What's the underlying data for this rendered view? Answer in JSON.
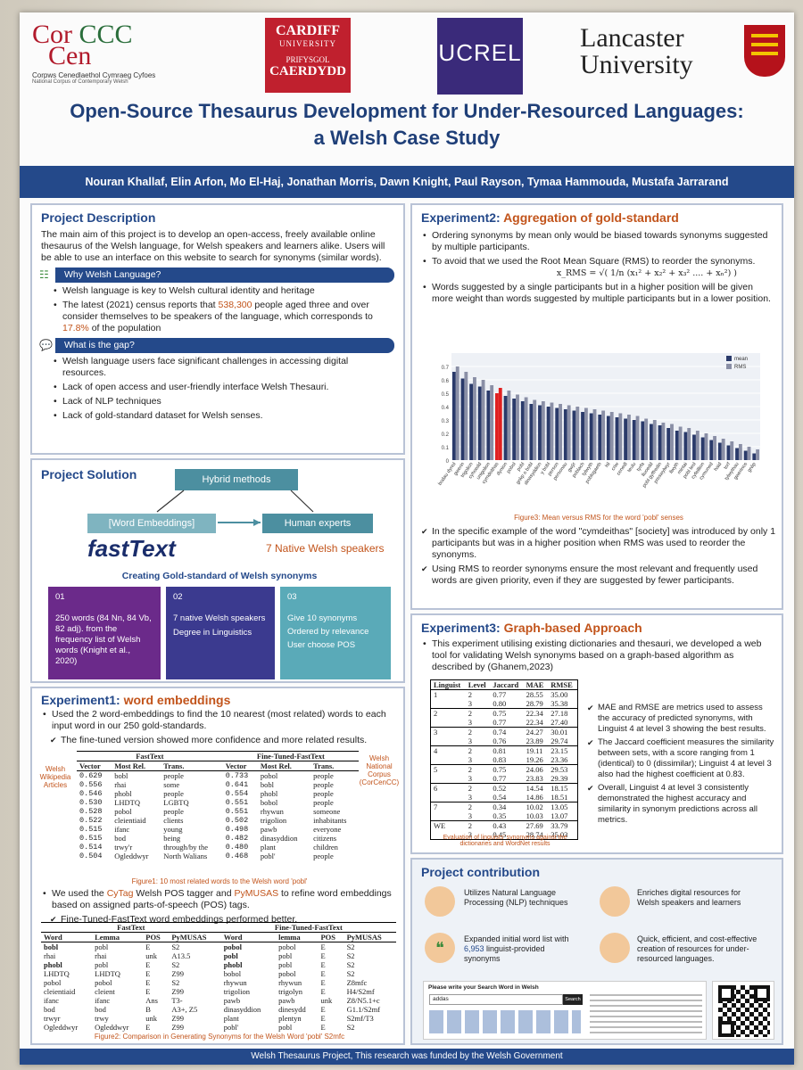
{
  "logos": {
    "corcencc_mark_1": "Cor",
    "corcencc_mark_2": "CCC",
    "corcencc_mark_3": "Cen",
    "corcencc_sub": "Corpws Cenedlaethol Cymraeg Cyfoes",
    "corcencc_sub2": "National Corpus of Contemporary Welsh",
    "cardiff_1": "CARDIFF",
    "cardiff_2": "UNIVERSITY",
    "cardiff_3": "PRIFYSGOL",
    "cardiff_4": "CAERDYDD",
    "ucrel": "UCREL",
    "lancaster_1": "Lancaster",
    "lancaster_2": "University"
  },
  "title_line1": "Open-Source Thesaurus Development for Under-Resourced Languages:",
  "title_line2": "a Welsh Case Study",
  "authors": "Nouran Khallaf, Elin Arfon, Mo El-Haj, Jonathan Morris, Dawn Knight, Paul Rayson, Tymaa Hammouda, Mustafa Jarrarand",
  "project_description": {
    "heading": "Project Description",
    "intro": "The main aim of this project is to develop an open-access, freely available online thesaurus of the Welsh language, for Welsh speakers and learners alike. Users will be able to use an interface on this website to search for synonyms (similar words).",
    "why_bar": "Why Welsh Language?",
    "why_1": "Welsh language is key to Welsh cultural identity and heritage",
    "why_2a": "The latest (2021) census reports that ",
    "why_2b": "538,300",
    "why_2c": " people aged three and over consider themselves to be speakers of the language, which corresponds to ",
    "why_2d": "17.8%",
    "why_2e": " of the population",
    "gap_bar": "What is the gap?",
    "gap_1": "Welsh language users face significant challenges in accessing digital resources.",
    "gap_2": "Lack of open access and user-friendly interface Welsh Thesauri.",
    "gap_3": "Lack of NLP techniques",
    "gap_4": "Lack of gold-standard dataset for Welsh senses."
  },
  "project_solution": {
    "heading": "Project Solution",
    "hybrid": "Hybrid methods",
    "word_emb": "[Word Embeddings]",
    "human": "Human experts",
    "fasttext": "fastText",
    "native": "7 Native Welsh speakers",
    "gold": "Creating Gold-standard of Welsh synonyms",
    "box1_num": "01",
    "box1_text": "250 words (84 Nn, 84 Vb, 82 adj). from the frequency list of Welsh words (Knight et al., 2020)",
    "box2_num": "02",
    "box2_a": "7 native Welsh speakers",
    "box2_b": "Degree in Linguistics",
    "box3_num": "03",
    "box3_a": "Give 10 synonyms",
    "box3_b": "Ordered by relevance",
    "box3_c": "User choose POS"
  },
  "exp1": {
    "heading_a": "Experiment1:",
    "heading_b": " word embeddings",
    "b1": "Used the 2 word-embeddings to find the 10 nearest (most related) words to each input word in our 250 gold-standards.",
    "b2": "The fine-tuned version showed more confidence and more related results.",
    "left_label": "Welsh Wikipedia Articles",
    "right_label": "Welsh National Corpus (CorCenCC)",
    "t1_cap_a": "FastText",
    "t1_cap_b": "Fine-Tuned-FastText",
    "t1_headers": [
      "Vector",
      "Most Rel.",
      "Trans.",
      "Vector",
      "Most Rel.",
      "Trans."
    ],
    "t1_rows": [
      [
        "0.629",
        "bobl",
        "people",
        "0.733",
        "pobol",
        "people"
      ],
      [
        "0.556",
        "rhai",
        "some",
        "0.641",
        "bobl",
        "people"
      ],
      [
        "0.546",
        "phobl",
        "people",
        "0.554",
        "phobl",
        "people"
      ],
      [
        "0.530",
        "LHDTQ",
        "LGBTQ",
        "0.551",
        "bobol",
        "people"
      ],
      [
        "0.528",
        "pobol",
        "people",
        "0.551",
        "rhywun",
        "someone"
      ],
      [
        "0.522",
        "cleientiaid",
        "clients",
        "0.502",
        "trigolion",
        "inhabitants"
      ],
      [
        "0.515",
        "ifanc",
        "young",
        "0.498",
        "pawb",
        "everyone"
      ],
      [
        "0.515",
        "bod",
        "being",
        "0.482",
        "dinasyddion",
        "citizens"
      ],
      [
        "0.514",
        "trwy'r",
        "through/by the",
        "0.480",
        "plant",
        "children"
      ],
      [
        "0.504",
        "Ogleddwyr",
        "North Walians",
        "0.468",
        "pobl'",
        "people"
      ]
    ],
    "fig1": "Figure1: 10 most related words to the Welsh word 'pobl'",
    "b3a": "We used the ",
    "b3b": "CyTag",
    "b3c": " Welsh POS tagger and ",
    "b3d": "PyMUSAS",
    "b3e": " to refine word embeddings based on assigned parts-of-speech (POS) tags.",
    "b4": "Fine-Tuned-FastText word embeddings performed better.",
    "t2_cap_a": "FastText",
    "t2_cap_b": "Fine-Tuned-FastText",
    "t2_headers": [
      "Word",
      "Lemma",
      "POS",
      "PyMUSAS",
      "Word",
      "lemma",
      "POS",
      "PyMUSAS"
    ],
    "t2_rows": [
      [
        "bobl",
        "pobl",
        "E",
        "S2",
        "pobol",
        "pobol",
        "E",
        "S2"
      ],
      [
        "rhai",
        "rhai",
        "unk",
        "A13.5",
        "pobl",
        "pobl",
        "E",
        "S2"
      ],
      [
        "phobl",
        "pobl",
        "E",
        "S2",
        "phobl",
        "pobl",
        "E",
        "S2"
      ],
      [
        "LHDTQ",
        "LHDTQ",
        "E",
        "Z99",
        "bobol",
        "pobol",
        "E",
        "S2"
      ],
      [
        "pobol",
        "pobol",
        "E",
        "S2",
        "rhywun",
        "rhywun",
        "E",
        "Z8mfc"
      ],
      [
        "cleientiaid",
        "cleient",
        "E",
        "Z99",
        "trigolion",
        "trigolyn",
        "E",
        "H4/S2mf"
      ],
      [
        "ifanc",
        "ifanc",
        "Ans",
        "T3-",
        "pawb",
        "pawb",
        "unk",
        "Z8/N5.1+c"
      ],
      [
        "bod",
        "bod",
        "B",
        "A3+, Z5",
        "dinasyddion",
        "dinesydd",
        "E",
        "G1.1/S2mf"
      ],
      [
        "trwyr",
        "trwy",
        "unk",
        "Z99",
        "plant",
        "plentyn",
        "E",
        "S2mf/T3"
      ],
      [
        "Ogleddwyr",
        "Ogleddwyr",
        "E",
        "Z99",
        "pobl'",
        "pobl",
        "E",
        "S2"
      ]
    ],
    "fig2": "Figure2: Comparison in Generating Synonyms for the Welsh Word 'pobl' S2mfc"
  },
  "exp2": {
    "heading_a": "Experiment2:",
    "heading_b": " Aggregation of gold-standard",
    "b1": "Ordering synonyms by mean only would be biased towards synonyms suggested by multiple participants.",
    "b2": "To avoid that we used the Root Mean Square (RMS) to reorder the synonyms.",
    "formula": "x_RMS = √( 1/n (x₁² + x₂² + x₃² .... + xₙ²) )",
    "b3": "Words suggested by a single participants but in a higher position will be given more weight than words suggested by multiple participants but in a lower position.",
    "fig3": "Figure3: Mean versus RMS for the word 'pobl' senses",
    "c1": "In the specific example of the word \"cymdeithas\" [society] was introduced by only 1 participants but was in a higher position when RMS was used to reorder the synonyms.",
    "c2": "Using RMS to reorder synonyms ensure the most relevant and frequently used words are given priority, even if they are suggested by fewer participants."
  },
  "chart_data": {
    "type": "bar",
    "title": "",
    "series": [
      {
        "name": "mean",
        "color": "#2a3a6a"
      },
      {
        "name": "RMS",
        "color": "#8a8fa6"
      }
    ],
    "legend": "top-right",
    "ylim": [
      0,
      0.8
    ],
    "yticks": [
      "0",
      "0.1",
      "0.2",
      "0.3",
      "0.4",
      "0.5",
      "0.6",
      "0.7"
    ],
    "categories": [
      "bodau dynol",
      "gwerin",
      "trigolion",
      "cyhoedd",
      "unigolion",
      "cymdeithas",
      "dynion",
      "pobol",
      "pobl",
      "grŵp o bobl",
      "dinasyddion",
      "y bobl",
      "person",
      "personau",
      "gwŷr",
      "poblach",
      "tylwyth",
      "poblogaeth",
      "hil",
      "criw",
      "cenedl",
      "teulu",
      "tyrfa",
      "lluoedd",
      "pobl gyffredin",
      "preswylwyr",
      "llwyth",
      "mintai",
      "pobl leol",
      "cyfeillion",
      "cymuned",
      "haid",
      "torf",
      "tylwythau",
      "gwerinos",
      "grŵp"
    ],
    "mean": [
      0.66,
      0.61,
      0.57,
      0.55,
      0.52,
      0.5,
      0.48,
      0.46,
      0.44,
      0.42,
      0.41,
      0.4,
      0.39,
      0.38,
      0.37,
      0.36,
      0.35,
      0.34,
      0.33,
      0.32,
      0.31,
      0.3,
      0.29,
      0.27,
      0.26,
      0.24,
      0.22,
      0.21,
      0.19,
      0.17,
      0.15,
      0.13,
      0.11,
      0.09,
      0.07,
      0.05
    ],
    "rms": [
      0.7,
      0.66,
      0.62,
      0.6,
      0.56,
      0.54,
      0.52,
      0.49,
      0.47,
      0.45,
      0.44,
      0.43,
      0.42,
      0.41,
      0.4,
      0.39,
      0.38,
      0.37,
      0.36,
      0.35,
      0.34,
      0.33,
      0.31,
      0.3,
      0.28,
      0.27,
      0.25,
      0.24,
      0.22,
      0.2,
      0.18,
      0.16,
      0.14,
      0.12,
      0.1,
      0.08
    ],
    "highlight_category": "cymdeithas"
  },
  "exp3": {
    "heading_a": "Experiment3:",
    "heading_b": " Graph-based Approach",
    "b1": "This experiment utilising existing dictionaries and thesauri, we developed a web tool for validating Welsh synonyms based on a graph-based algorithm as described by (Ghanem,2023)",
    "t_headers": [
      "Linguist",
      "Level",
      "Jaccard",
      "MAE",
      "RMSE"
    ],
    "t_rows": [
      [
        "1",
        "2",
        "0.77",
        "28.55",
        "35.00"
      ],
      [
        "",
        "3",
        "0.80",
        "28.79",
        "35.38"
      ],
      [
        "2",
        "2",
        "0.75",
        "22.34",
        "27.18"
      ],
      [
        "",
        "3",
        "0.77",
        "22.34",
        "27.40"
      ],
      [
        "3",
        "2",
        "0.74",
        "24.27",
        "30.01"
      ],
      [
        "",
        "3",
        "0.76",
        "23.89",
        "29.74"
      ],
      [
        "4",
        "2",
        "0.81",
        "19.11",
        "23.15"
      ],
      [
        "",
        "3",
        "0.83",
        "19.26",
        "23.36"
      ],
      [
        "5",
        "2",
        "0.75",
        "24.06",
        "29.53"
      ],
      [
        "",
        "3",
        "0.77",
        "23.83",
        "29.39"
      ],
      [
        "6",
        "2",
        "0.52",
        "14.54",
        "18.15"
      ],
      [
        "",
        "3",
        "0.54",
        "14.86",
        "18.51"
      ],
      [
        "7",
        "2",
        "0.34",
        "10.02",
        "13.05"
      ],
      [
        "",
        "3",
        "0.35",
        "10.03",
        "13.07"
      ],
      [
        "WE",
        "2",
        "0.43",
        "27.69",
        "33.79"
      ],
      [
        "",
        "3",
        "0.45",
        "28.74",
        "35.03"
      ]
    ],
    "t_cap": "Evaluation of linguists' synonyms against the dictionaries and WordNet results",
    "r1": "MAE and RMSE are metrics used to assess the accuracy of predicted synonyms, with Linguist 4 at level 3 showing the best results.",
    "r2": "The Jaccard coefficient measures the similarity between sets, with a score ranging from 1 (identical) to 0 (dissimilar); Linguist 4 at level 3 also had the highest coefficient at 0.83.",
    "r3": "Overall, Linguist 4 at level 3 consistently demonstrated the highest accuracy and similarity in synonym predictions across all metrics."
  },
  "contrib": {
    "heading": "Project contribution",
    "c1": "Utilizes Natural Language Processing (NLP) techniques",
    "c2": "Enriches digital resources for Welsh speakers and learners",
    "c3a": "Expanded initial word list with ",
    "c3b": "6,953",
    "c3c": " linguist-provided synonyms",
    "c4": "Quick, efficient, and cost-effective creation of resources for under-resourced languages."
  },
  "search": {
    "title": "Please write your Search Word in Welsh",
    "value": "addas",
    "button": "Search"
  },
  "footer": "Welsh Thesaurus Project, This research was funded by the Welsh Government"
}
